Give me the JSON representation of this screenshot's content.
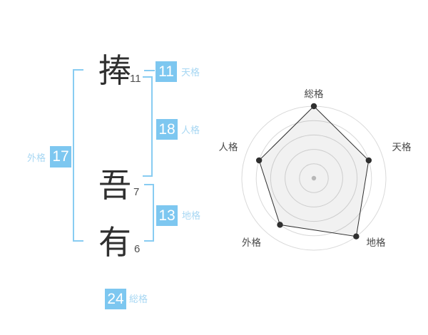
{
  "name_panel": {
    "characters": [
      {
        "char": "捧",
        "strokes": "11"
      },
      {
        "char": "吾",
        "strokes": "7"
      },
      {
        "char": "有",
        "strokes": "6"
      }
    ],
    "results": {
      "tenkaku": {
        "value": "11",
        "label": "天格"
      },
      "jinkaku": {
        "value": "18",
        "label": "人格"
      },
      "chikaku": {
        "value": "13",
        "label": "地格"
      },
      "gaikaku": {
        "value": "17",
        "label": "外格"
      },
      "soukaku": {
        "value": "24",
        "label": "総格"
      }
    }
  },
  "colors": {
    "accent_blue": "#7dc7f0",
    "label_blue": "#a7d7f3",
    "bracket_blue": "#88ccf2",
    "chart_grid": "#d9d9d9",
    "chart_line": "#2f2f2f",
    "chart_fill": "rgba(0,0,0,0.055)",
    "chart_center_dot": "#b8b8b8",
    "chart_label_text": "#4a4a4a",
    "kanji_text": "#2f2f2f",
    "stroke_text": "#4f4f4f"
  },
  "chart_data": {
    "type": "radar",
    "categories": [
      "総格",
      "天格",
      "地格",
      "外格",
      "人格"
    ],
    "values": [
      5,
      4,
      5,
      4,
      4
    ],
    "max": 5,
    "rings": 5,
    "start_angle_deg": -90,
    "direction": "clockwise",
    "grid_shape": "circular",
    "axis_lines": false,
    "legend": "none",
    "title": ""
  }
}
